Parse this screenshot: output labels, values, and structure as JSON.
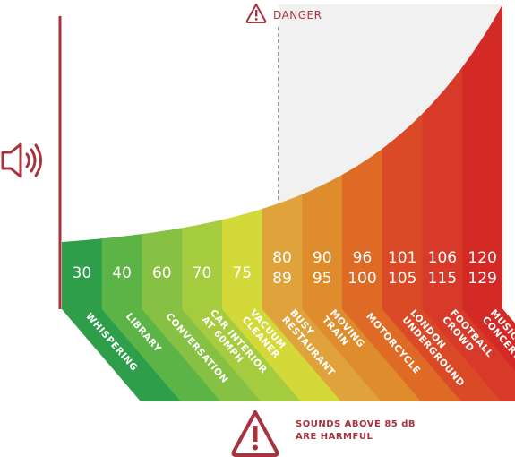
{
  "chart_data": {
    "type": "area",
    "title": "",
    "xlabel": "",
    "ylabel": "",
    "unit": "dB",
    "ylim": [
      0,
      130
    ],
    "danger_threshold": 85,
    "categories": [
      {
        "name": [
          "WHISPERING"
        ],
        "label": [
          "30"
        ],
        "low": 30,
        "high": 30,
        "color": "#2e9e4b"
      },
      {
        "name": [
          "LIBRARY"
        ],
        "label": [
          "40"
        ],
        "low": 40,
        "high": 40,
        "color": "#5cb446"
      },
      {
        "name": [
          "CONVERSATION"
        ],
        "label": [
          "60"
        ],
        "low": 60,
        "high": 60,
        "color": "#86c143"
      },
      {
        "name": [
          "CAR INTERIOR",
          "AT 60MPH"
        ],
        "label": [
          "70"
        ],
        "low": 70,
        "high": 70,
        "color": "#a5cb3f"
      },
      {
        "name": [
          "VACUUM",
          "CLEANER"
        ],
        "label": [
          "75"
        ],
        "low": 75,
        "high": 75,
        "color": "#d4d93a"
      },
      {
        "name": [
          "BUSY",
          "RESTAURANT"
        ],
        "label": [
          "80",
          "89"
        ],
        "low": 80,
        "high": 89,
        "color": "#e0a33c"
      },
      {
        "name": [
          "MOVING",
          "TRAIN"
        ],
        "label": [
          "90",
          "95"
        ],
        "low": 90,
        "high": 95,
        "color": "#de8c2c"
      },
      {
        "name": [
          "MOTORCYCLE"
        ],
        "label": [
          "96",
          "100"
        ],
        "low": 96,
        "high": 100,
        "color": "#df6a25"
      },
      {
        "name": [
          "LONDON",
          "UNDERGROUND"
        ],
        "label": [
          "101",
          "105"
        ],
        "low": 101,
        "high": 105,
        "color": "#db4a26"
      },
      {
        "name": [
          "FOOTBALL",
          "CROWD"
        ],
        "label": [
          "106",
          "115"
        ],
        "low": 106,
        "high": 115,
        "color": "#d83a2a"
      },
      {
        "name": [
          "MUSIC",
          "CONCERT"
        ],
        "label": [
          "120",
          "129"
        ],
        "low": 120,
        "high": 129,
        "color": "#d42a26"
      }
    ]
  },
  "danger": {
    "label": "DANGER"
  },
  "warning": {
    "lines": [
      "SOUNDS ABOVE 85 dB",
      "ARE HARMFUL"
    ]
  },
  "colors": {
    "axis": "#a8323e",
    "danger_zone": "#f1f1f1",
    "accent": "#a8323e"
  },
  "icons": {
    "volume": "speaker-icon",
    "danger": "warning-triangle-icon",
    "warning": "warning-triangle-icon"
  }
}
